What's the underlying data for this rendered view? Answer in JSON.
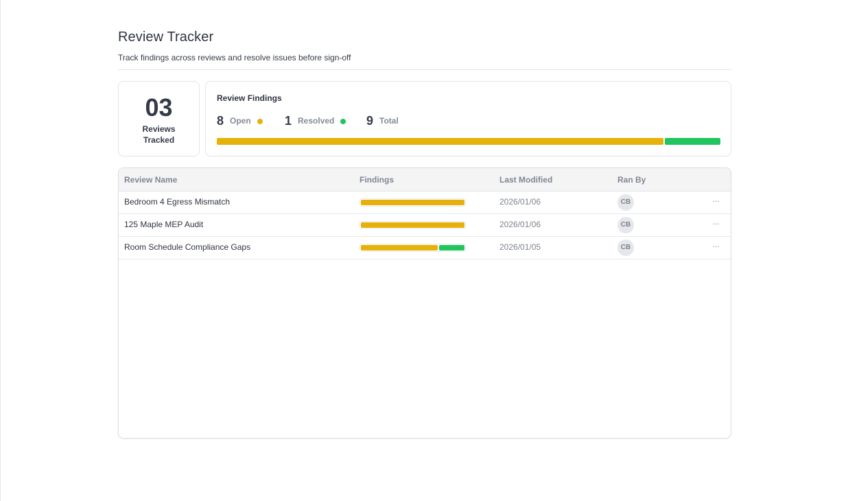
{
  "header": {
    "title": "Review Tracker",
    "subtitle": "Track findings across reviews and resolve issues before sign-off"
  },
  "summary": {
    "reviews_count": "03",
    "reviews_label": "Reviews Tracked",
    "findings_title": "Review Findings",
    "open_count": "8",
    "open_label": "Open",
    "resolved_count": "1",
    "resolved_label": "Resolved",
    "total_count": "9",
    "total_label": "Total",
    "open_fraction": 0.889,
    "resolved_fraction": 0.111
  },
  "colors": {
    "open": "#e6b10a",
    "resolved": "#22c45e"
  },
  "table": {
    "columns": [
      "Review Name",
      "Findings",
      "Last Modified",
      "Ran By"
    ],
    "rows": [
      {
        "name": "Bedroom 4 Egress Mismatch",
        "open_fraction": 1.0,
        "resolved_fraction": 0.0,
        "last_modified": "2026/01/06",
        "ran_by": "CB"
      },
      {
        "name": "125 Maple MEP Audit",
        "open_fraction": 1.0,
        "resolved_fraction": 0.0,
        "last_modified": "2026/01/06",
        "ran_by": "CB"
      },
      {
        "name": "Room Schedule Compliance Gaps",
        "open_fraction": 0.75,
        "resolved_fraction": 0.25,
        "last_modified": "2026/01/05",
        "ran_by": "CB"
      }
    ],
    "more_icon": "ellipsis-icon",
    "more_glyph": "···"
  }
}
